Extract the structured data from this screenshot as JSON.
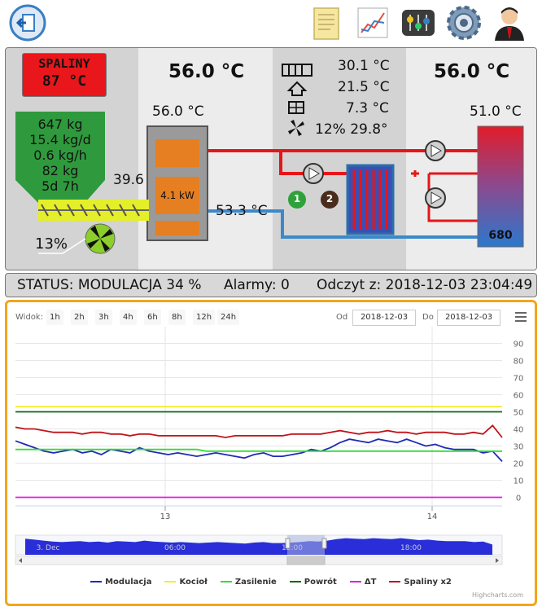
{
  "top_icons": [
    {
      "name": "logout-icon",
      "color": "#3a7fc4"
    },
    {
      "name": "document-icon",
      "color": "#f5e6a0"
    },
    {
      "name": "chart-icon",
      "color": "#e74c3c"
    },
    {
      "name": "mixer-icon",
      "color": "#333333"
    },
    {
      "name": "gear-icon",
      "color": "#5a7fa0"
    },
    {
      "name": "user-icon",
      "color": "#b33"
    }
  ],
  "boiler": {
    "exhaust_label": "SPALINY",
    "exhaust_temp": "87 °C",
    "boiler_temp_big": "56.0 °C",
    "boiler_temp_small": "56.0 °C",
    "power": "4.1 kW",
    "return_temp": "53.3 °C",
    "feeder_temp": "39.6",
    "fan_percent": "13%",
    "hopper": [
      "647 kg",
      "15.4 kg/d",
      "0.6 kg/h",
      "82 kg",
      "5d 7h"
    ]
  },
  "mixer": {
    "rad_temp": "30.1 °C",
    "house_temp": "21.5 °C",
    "outside_temp": "7.3 °C",
    "fan_line": "12% 29.8°",
    "circuit_1": "1",
    "circuit_2": "2"
  },
  "tank": {
    "big_temp": "56.0 °C",
    "temp": "51.0 °C",
    "level": "680"
  },
  "status": {
    "text": "STATUS: MODULACJA 34 %",
    "alarms": "Alarmy: 0",
    "reading": "Odczyt z: 2018-12-03 23:04:49"
  },
  "chart_controls": {
    "view_label": "Widok:",
    "ranges": [
      "1h",
      "2h",
      "3h",
      "4h",
      "6h",
      "8h",
      "12h",
      "24h"
    ],
    "from_label": "Od",
    "from_value": "2018-12-03",
    "to_label": "Do",
    "to_value": "2018-12-03",
    "credits": "Highcharts.com"
  },
  "chart_data": {
    "type": "line",
    "x_tick_labels": [
      "13",
      "14"
    ],
    "y_tick_labels": [
      "0",
      "10",
      "20",
      "30",
      "40",
      "50",
      "60",
      "70",
      "80",
      "90"
    ],
    "ylim": [
      -5,
      95
    ],
    "grid": true,
    "legend_position": "bottom",
    "navigator_labels": [
      "3. Dec",
      "06:00",
      "12:00",
      "18:00"
    ],
    "series": [
      {
        "name": "Modulacja",
        "color": "#1f2bb5",
        "values": [
          33,
          31,
          29,
          27,
          26,
          27,
          28,
          26,
          27,
          25,
          28,
          27,
          26,
          29,
          27,
          26,
          25,
          26,
          25,
          24,
          25,
          26,
          25,
          24,
          23,
          25,
          26,
          24,
          24,
          25,
          26,
          28,
          27,
          29,
          32,
          34,
          33,
          32,
          34,
          33,
          32,
          34,
          32,
          30,
          31,
          29,
          28,
          28,
          28,
          26,
          27,
          21
        ]
      },
      {
        "name": "Kocioł",
        "color": "#f2ee2c",
        "values": [
          53,
          53,
          53,
          53,
          53,
          53,
          53,
          53,
          53,
          53,
          53,
          53,
          53,
          53,
          53,
          53,
          53,
          53,
          53,
          53,
          53,
          53,
          53,
          53,
          53,
          53,
          53,
          53,
          53,
          53,
          53,
          53,
          53,
          53,
          53,
          53,
          53,
          53,
          53,
          53,
          53,
          53,
          53,
          53,
          53,
          53,
          53,
          53,
          53,
          53,
          53,
          53
        ]
      },
      {
        "name": "Zasilenie",
        "color": "#33dd33",
        "values": [
          28,
          28,
          28,
          28,
          28,
          28,
          28,
          28,
          28,
          28,
          28,
          28,
          28,
          28,
          28,
          28,
          28,
          28,
          28,
          28,
          27,
          27,
          27,
          27,
          27,
          27,
          27,
          27,
          27,
          27,
          27,
          27,
          27,
          27,
          27,
          27,
          27,
          27,
          27,
          27,
          27,
          27,
          27,
          27,
          27,
          27,
          27,
          27,
          27,
          27,
          27,
          27
        ]
      },
      {
        "name": "Powrót",
        "color": "#116611",
        "values": [
          50,
          50,
          50,
          50,
          50,
          50,
          50,
          50,
          50,
          50,
          50,
          50,
          50,
          50,
          50,
          50,
          50,
          50,
          50,
          50,
          50,
          50,
          50,
          50,
          50,
          50,
          50,
          50,
          50,
          50,
          50,
          50,
          50,
          50,
          50,
          50,
          50,
          50,
          50,
          50,
          50,
          50,
          50,
          50,
          50,
          50,
          50,
          50,
          50,
          50,
          50,
          50
        ]
      },
      {
        "name": "ΔT",
        "color": "#e01ee0",
        "values": [
          0,
          0,
          0,
          0,
          0,
          0,
          0,
          0,
          0,
          0,
          0,
          0,
          0,
          0,
          0,
          0,
          0,
          0,
          0,
          0,
          0,
          0,
          0,
          0,
          0,
          0,
          0,
          0,
          0,
          0,
          0,
          0,
          0,
          0,
          0,
          0,
          0,
          0,
          0,
          0,
          0,
          0,
          0,
          0,
          0,
          0,
          0,
          0,
          0,
          0,
          0,
          0
        ]
      },
      {
        "name": "Spaliny x2",
        "color": "#c0141a",
        "values": [
          41,
          40,
          40,
          39,
          38,
          38,
          38,
          37,
          38,
          38,
          37,
          37,
          36,
          37,
          37,
          36,
          36,
          36,
          36,
          36,
          36,
          36,
          35,
          36,
          36,
          36,
          36,
          36,
          36,
          37,
          37,
          37,
          37,
          38,
          39,
          38,
          37,
          38,
          38,
          39,
          38,
          38,
          37,
          38,
          38,
          38,
          37,
          37,
          38,
          37,
          42,
          35
        ]
      }
    ]
  }
}
